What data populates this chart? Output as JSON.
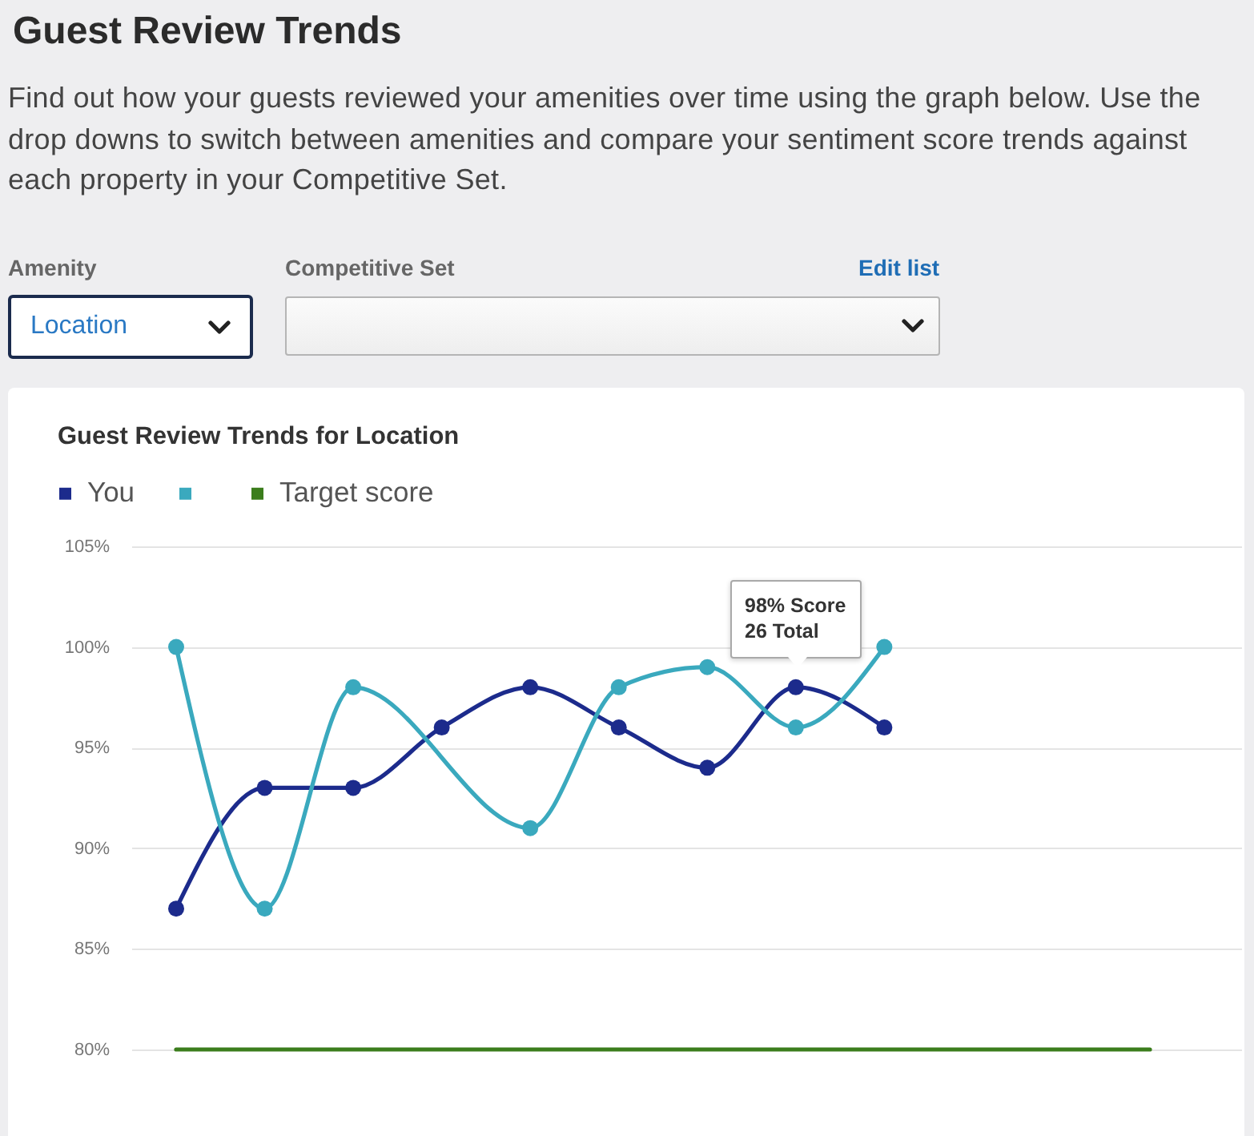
{
  "chart_data": {
    "type": "line",
    "title": "Guest Review Trends",
    "subtitle": "Find out how your guests reviewed your amenities over time using the graph below. Use the drop downs to switch between amenities and compare your sentiment score trends against each property in your Competitive Set.",
    "annotations": [
      "Amenity",
      "Location",
      "Competitive Set",
      "Edit list",
      "Guest Review Trends for Location",
      "98% Score\n26 Total"
    ],
    "categories": [
      null,
      null,
      null,
      null,
      null,
      null,
      null,
      null,
      null,
      null,
      null,
      null
    ],
    "series": [
      {
        "name": "You",
        "color": "#1c2b8c",
        "values": [
          87,
          93,
          93,
          96,
          98,
          96,
          94,
          98,
          96,
          null,
          null,
          null
        ]
      },
      {
        "color": "#3aa9be",
        "values": [
          100,
          87,
          98,
          null,
          91,
          98,
          99,
          96,
          100,
          null,
          null,
          null
        ]
      },
      {
        "name": "Target score",
        "color": "#3b7d1c",
        "marker": "none",
        "values": [
          80,
          80,
          80,
          80,
          80,
          80,
          80,
          80,
          80,
          80,
          80,
          80
        ]
      }
    ],
    "ylim": [
      80,
      105
    ],
    "yticks": [
      {
        "value": 80,
        "label": "80%"
      },
      {
        "value": 85,
        "label": "85%"
      },
      {
        "value": 90,
        "label": "90%"
      },
      {
        "value": 95,
        "label": "95%"
      },
      {
        "value": 100,
        "label": "100%"
      },
      {
        "value": 105,
        "label": "105%"
      }
    ],
    "grid": "y",
    "legend": "top left",
    "tick_labels": "y",
    "marker": "circle"
  }
}
